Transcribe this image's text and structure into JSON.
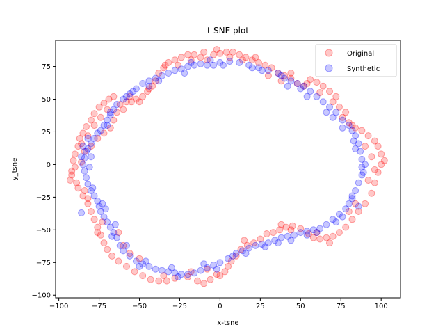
{
  "chart_data": {
    "type": "scatter",
    "title": "t-SNE plot",
    "xlabel": "x-tsne",
    "ylabel": "y_tsne",
    "xlim": [
      -102,
      112
    ],
    "ylim": [
      -102,
      95
    ],
    "xticks": [
      -100,
      -75,
      -50,
      -25,
      0,
      25,
      50,
      75,
      100
    ],
    "yticks": [
      -100,
      -75,
      -50,
      -25,
      0,
      25,
      50,
      75
    ],
    "legend_position": "top-right",
    "grid": false,
    "series": [
      {
        "name": "Original",
        "color": "#ff0000",
        "points": [
          [
            -92,
            -5
          ],
          [
            -91,
            3
          ],
          [
            -93,
            -12
          ],
          [
            -90,
            8
          ],
          [
            -88,
            14
          ],
          [
            -87,
            20
          ],
          [
            -85,
            24
          ],
          [
            -83,
            29
          ],
          [
            -80,
            34
          ],
          [
            -78,
            39
          ],
          [
            -75,
            44
          ],
          [
            -72,
            47
          ],
          [
            -69,
            50
          ],
          [
            -66,
            52
          ],
          [
            -88,
            -18
          ],
          [
            -85,
            -24
          ],
          [
            -82,
            -30
          ],
          [
            -80,
            -36
          ],
          [
            -78,
            -42
          ],
          [
            -76,
            -48
          ],
          [
            -74,
            -54
          ],
          [
            -72,
            -60
          ],
          [
            -70,
            -65
          ],
          [
            -67,
            -70
          ],
          [
            -63,
            -74
          ],
          [
            -58,
            -78
          ],
          [
            -53,
            -82
          ],
          [
            -48,
            -85
          ],
          [
            -43,
            -88
          ],
          [
            -38,
            -89
          ],
          [
            -33,
            -89
          ],
          [
            -28,
            -87
          ],
          [
            -20,
            -86
          ],
          [
            -14,
            -89
          ],
          [
            -10,
            -91
          ],
          [
            -6,
            -88
          ],
          [
            -2,
            -84
          ],
          [
            3,
            -82
          ],
          [
            7,
            -74
          ],
          [
            10,
            -70
          ],
          [
            13,
            -65
          ],
          [
            17,
            -62
          ],
          [
            21,
            -60
          ],
          [
            25,
            -57
          ],
          [
            29,
            -53
          ],
          [
            33,
            -52
          ],
          [
            37,
            -50
          ],
          [
            41,
            -48
          ],
          [
            45,
            -47
          ],
          [
            50,
            -49
          ],
          [
            55,
            -53
          ],
          [
            58,
            -56
          ],
          [
            62,
            -57
          ],
          [
            66,
            -56
          ],
          [
            70,
            -55
          ],
          [
            74,
            -52
          ],
          [
            78,
            -48
          ],
          [
            82,
            -42
          ],
          [
            86,
            -36
          ],
          [
            90,
            -30
          ],
          [
            94,
            -22
          ],
          [
            96,
            -14
          ],
          [
            98,
            -6
          ],
          [
            100,
            0
          ],
          [
            102,
            3
          ],
          [
            100,
            8
          ],
          [
            98,
            14
          ],
          [
            96,
            18
          ],
          [
            92,
            22
          ],
          [
            88,
            26
          ],
          [
            84,
            28
          ],
          [
            80,
            32
          ],
          [
            78,
            40
          ],
          [
            74,
            44
          ],
          [
            72,
            52
          ],
          [
            68,
            56
          ],
          [
            64,
            60
          ],
          [
            60,
            63
          ],
          [
            56,
            65
          ],
          [
            52,
            60
          ],
          [
            48,
            62
          ],
          [
            44,
            66
          ],
          [
            40,
            68
          ],
          [
            36,
            70
          ],
          [
            32,
            74
          ],
          [
            28,
            76
          ],
          [
            24,
            78
          ],
          [
            20,
            80
          ],
          [
            16,
            82
          ],
          [
            12,
            84
          ],
          [
            8,
            86
          ],
          [
            4,
            86
          ],
          [
            0,
            85
          ],
          [
            -4,
            84
          ],
          [
            -8,
            80
          ],
          [
            -12,
            82
          ],
          [
            -16,
            84
          ],
          [
            -20,
            84
          ],
          [
            -24,
            82
          ],
          [
            -28,
            80
          ],
          [
            -32,
            78
          ],
          [
            -35,
            74
          ],
          [
            -38,
            70
          ],
          [
            -40,
            64
          ],
          [
            -42,
            60
          ],
          [
            -45,
            56
          ],
          [
            -48,
            52
          ],
          [
            -52,
            50
          ],
          [
            -55,
            48
          ],
          [
            -58,
            48
          ],
          [
            -62,
            46
          ],
          [
            -64,
            40
          ],
          [
            -66,
            34
          ],
          [
            -68,
            28
          ],
          [
            -72,
            24
          ],
          [
            -76,
            20
          ],
          [
            -80,
            14
          ],
          [
            -84,
            10
          ],
          [
            -86,
            2
          ],
          [
            -90,
            -2
          ],
          [
            -76,
            -52
          ],
          [
            -73,
            -44
          ],
          [
            -63,
            -52
          ],
          [
            -60,
            -62
          ],
          [
            -56,
            -68
          ],
          [
            -50,
            -72
          ],
          [
            -35,
            -85
          ],
          [
            -18,
            -82
          ],
          [
            -8,
            -80
          ],
          [
            0,
            -85
          ],
          [
            5,
            -78
          ],
          [
            15,
            -58
          ],
          [
            38,
            -46
          ],
          [
            44,
            -50
          ],
          [
            60,
            -52
          ],
          [
            68,
            -60
          ],
          [
            80,
            -36
          ],
          [
            84,
            -30
          ],
          [
            92,
            -12
          ],
          [
            96,
            -4
          ],
          [
            94,
            6
          ],
          [
            90,
            14
          ],
          [
            82,
            30
          ],
          [
            76,
            36
          ],
          [
            70,
            48
          ],
          [
            62,
            55
          ],
          [
            54,
            62
          ],
          [
            44,
            70
          ],
          [
            38,
            64
          ],
          [
            30,
            68
          ],
          [
            22,
            82
          ],
          [
            14,
            80
          ],
          [
            6,
            82
          ],
          [
            -2,
            88
          ],
          [
            -10,
            86
          ],
          [
            -18,
            80
          ],
          [
            -26,
            76
          ],
          [
            -34,
            76
          ],
          [
            -44,
            58
          ],
          [
            -50,
            48
          ],
          [
            -56,
            52
          ],
          [
            -60,
            42
          ],
          [
            -70,
            42
          ],
          [
            -74,
            36
          ],
          [
            -78,
            30
          ],
          [
            -82,
            22
          ],
          [
            -86,
            16
          ],
          [
            -92,
            -8
          ],
          [
            -89,
            -14
          ],
          [
            -84,
            -20
          ],
          [
            -82,
            -26
          ]
        ]
      },
      {
        "name": "Synthetic",
        "color": "#0000ff",
        "points": [
          [
            -83,
            10
          ],
          [
            -84,
            5
          ],
          [
            -85,
            0
          ],
          [
            -84,
            -5
          ],
          [
            -83,
            -10
          ],
          [
            -82,
            -15
          ],
          [
            -80,
            -20
          ],
          [
            -78,
            -24
          ],
          [
            -76,
            -28
          ],
          [
            -75,
            -32
          ],
          [
            -74,
            -36
          ],
          [
            -72,
            -40
          ],
          [
            -70,
            -44
          ],
          [
            -68,
            -48
          ],
          [
            -66,
            -52
          ],
          [
            -64,
            -56
          ],
          [
            -62,
            -62
          ],
          [
            -60,
            -66
          ],
          [
            -56,
            -70
          ],
          [
            -52,
            -74
          ],
          [
            -48,
            -76
          ],
          [
            -44,
            -78
          ],
          [
            -40,
            -80
          ],
          [
            -36,
            -81
          ],
          [
            -32,
            -82
          ],
          [
            -28,
            -83
          ],
          [
            -24,
            -84
          ],
          [
            -20,
            -84
          ],
          [
            -16,
            -83
          ],
          [
            -12,
            -81
          ],
          [
            -8,
            -79
          ],
          [
            -4,
            -77
          ],
          [
            0,
            -75
          ],
          [
            5,
            -72
          ],
          [
            10,
            -68
          ],
          [
            14,
            -66
          ],
          [
            18,
            -64
          ],
          [
            22,
            -62
          ],
          [
            26,
            -61
          ],
          [
            30,
            -60
          ],
          [
            34,
            -58
          ],
          [
            38,
            -56
          ],
          [
            42,
            -55
          ],
          [
            46,
            -54
          ],
          [
            50,
            -52
          ],
          [
            54,
            -51
          ],
          [
            58,
            -50
          ],
          [
            62,
            -49
          ],
          [
            66,
            -46
          ],
          [
            70,
            -42
          ],
          [
            74,
            -38
          ],
          [
            78,
            -34
          ],
          [
            80,
            -30
          ],
          [
            82,
            -26
          ],
          [
            84,
            -20
          ],
          [
            86,
            -14
          ],
          [
            88,
            -8
          ],
          [
            88,
            -2
          ],
          [
            88,
            4
          ],
          [
            87,
            10
          ],
          [
            86,
            16
          ],
          [
            84,
            22
          ],
          [
            82,
            26
          ],
          [
            80,
            30
          ],
          [
            76,
            34
          ],
          [
            72,
            40
          ],
          [
            68,
            44
          ],
          [
            64,
            48
          ],
          [
            60,
            52
          ],
          [
            56,
            56
          ],
          [
            52,
            60
          ],
          [
            48,
            62
          ],
          [
            44,
            64
          ],
          [
            40,
            66
          ],
          [
            36,
            70
          ],
          [
            30,
            72
          ],
          [
            24,
            74
          ],
          [
            18,
            76
          ],
          [
            12,
            78
          ],
          [
            6,
            79
          ],
          [
            0,
            78
          ],
          [
            -4,
            76
          ],
          [
            -8,
            76
          ],
          [
            -12,
            77
          ],
          [
            -16,
            76
          ],
          [
            -20,
            75
          ],
          [
            -24,
            73
          ],
          [
            -28,
            72
          ],
          [
            -32,
            70
          ],
          [
            -36,
            68
          ],
          [
            -40,
            66
          ],
          [
            -44,
            64
          ],
          [
            -48,
            62
          ],
          [
            -52,
            58
          ],
          [
            -56,
            54
          ],
          [
            -60,
            50
          ],
          [
            -64,
            46
          ],
          [
            -66,
            42
          ],
          [
            -68,
            38
          ],
          [
            -70,
            34
          ],
          [
            -72,
            30
          ],
          [
            -74,
            26
          ],
          [
            -76,
            24
          ],
          [
            -78,
            20
          ],
          [
            -80,
            16
          ],
          [
            -82,
            12
          ],
          [
            -86,
            -37
          ],
          [
            -85,
            14
          ],
          [
            -86,
            6
          ],
          [
            -81,
            -2
          ],
          [
            -79,
            -18
          ],
          [
            -71,
            -34
          ],
          [
            -65,
            -46
          ],
          [
            -58,
            -62
          ],
          [
            -46,
            -74
          ],
          [
            -30,
            -79
          ],
          [
            -10,
            -76
          ],
          [
            8,
            -70
          ],
          [
            28,
            -63
          ],
          [
            44,
            -58
          ],
          [
            60,
            -52
          ],
          [
            76,
            -40
          ],
          [
            86,
            -32
          ],
          [
            90,
            0
          ],
          [
            84,
            12
          ],
          [
            76,
            28
          ],
          [
            66,
            40
          ],
          [
            50,
            58
          ],
          [
            38,
            68
          ],
          [
            20,
            74
          ],
          [
            -6,
            80
          ],
          [
            -22,
            70
          ],
          [
            -44,
            60
          ],
          [
            -58,
            52
          ],
          [
            -70,
            30
          ],
          [
            -80,
            6
          ],
          [
            -73,
            -30
          ],
          [
            -67,
            -55
          ],
          [
            -50,
            -78
          ],
          [
            -26,
            -86
          ],
          [
            -2,
            -80
          ],
          [
            16,
            -68
          ],
          [
            36,
            -60
          ],
          [
            54,
            -54
          ],
          [
            72,
            -44
          ],
          [
            82,
            -24
          ],
          [
            89,
            -6
          ],
          [
            83,
            18
          ],
          [
            70,
            36
          ],
          [
            54,
            52
          ],
          [
            42,
            60
          ],
          [
            26,
            72
          ],
          [
            2,
            76
          ],
          [
            -18,
            78
          ],
          [
            -38,
            64
          ],
          [
            -54,
            56
          ],
          [
            -68,
            40
          ],
          [
            -82,
            20
          ]
        ]
      }
    ]
  }
}
